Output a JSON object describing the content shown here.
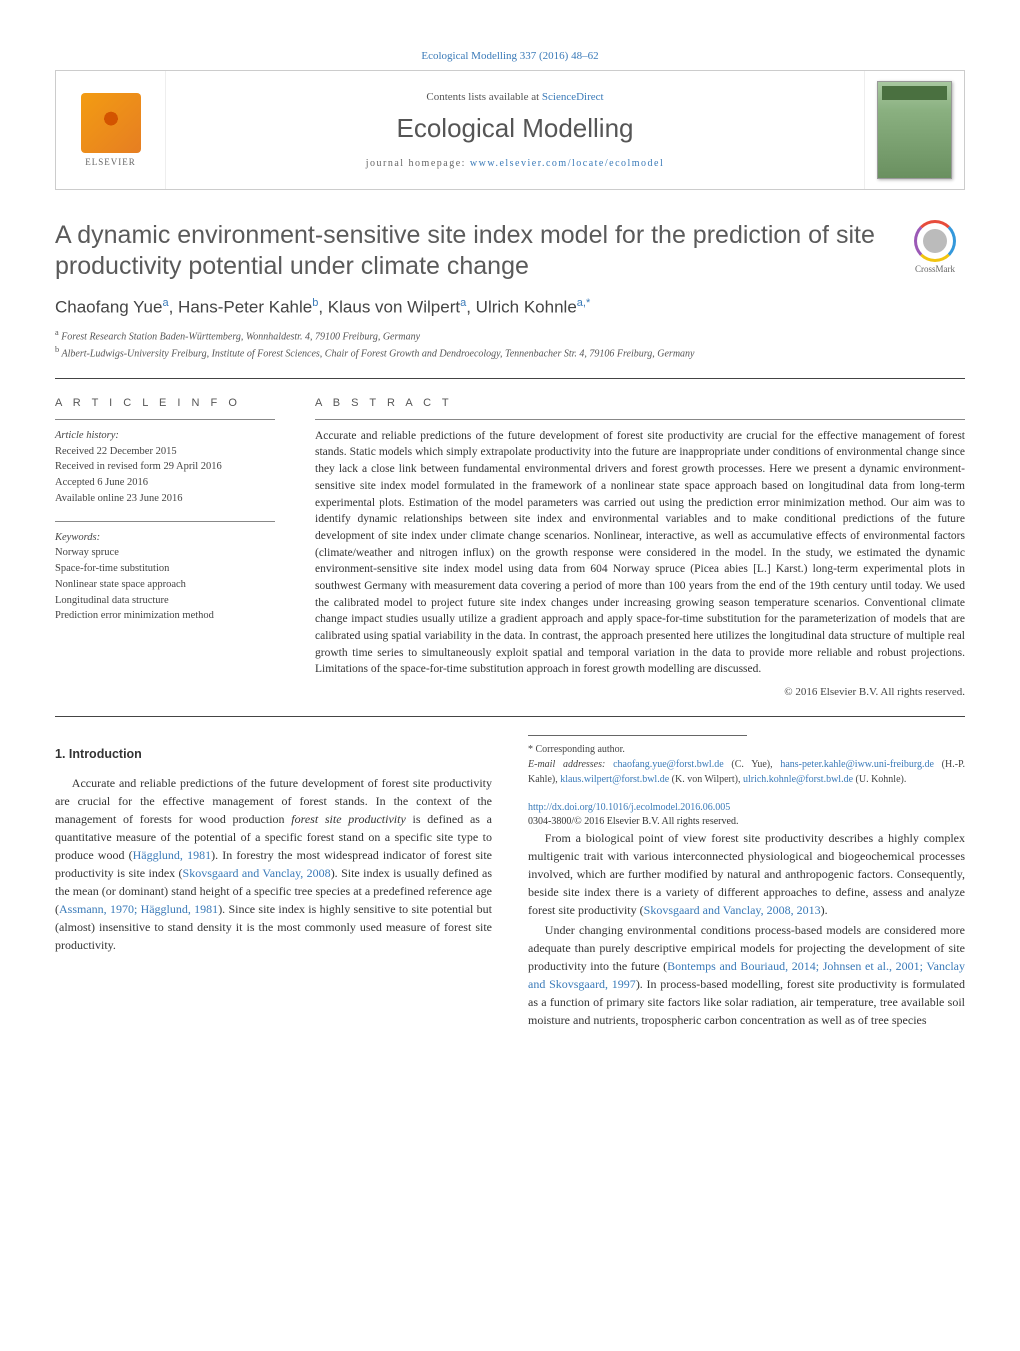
{
  "journal_ref": "Ecological Modelling 337 (2016) 48–62",
  "header": {
    "contents_prefix": "Contents lists available at ",
    "contents_link": "ScienceDirect",
    "journal_title": "Ecological Modelling",
    "homepage_prefix": "journal homepage: ",
    "homepage_link": "www.elsevier.com/locate/ecolmodel",
    "publisher_name": "ELSEVIER"
  },
  "crossmark_label": "CrossMark",
  "title": "A dynamic environment-sensitive site index model for the prediction of site productivity potential under climate change",
  "authors_html": "Chaofang Yue<sup>a</sup>, Hans-Peter Kahle<sup>b</sup>, Klaus von Wilpert<sup>a</sup>, Ulrich Kohnle<sup>a,*</sup>",
  "affiliations": [
    {
      "sup": "a",
      "text": "Forest Research Station Baden-Württemberg, Wonnhaldestr. 4, 79100 Freiburg, Germany"
    },
    {
      "sup": "b",
      "text": "Albert-Ludwigs-University Freiburg, Institute of Forest Sciences, Chair of Forest Growth and Dendroecology, Tennenbacher Str. 4, 79106 Freiburg, Germany"
    }
  ],
  "info": {
    "heading": "a r t i c l e   i n f o",
    "history_label": "Article history:",
    "history": [
      "Received 22 December 2015",
      "Received in revised form 29 April 2016",
      "Accepted 6 June 2016",
      "Available online 23 June 2016"
    ],
    "keywords_label": "Keywords:",
    "keywords": [
      "Norway spruce",
      "Space-for-time substitution",
      "Nonlinear state space approach",
      "Longitudinal data structure",
      "Prediction error minimization method"
    ]
  },
  "abstract": {
    "heading": "a b s t r a c t",
    "text": "Accurate and reliable predictions of the future development of forest site productivity are crucial for the effective management of forest stands. Static models which simply extrapolate productivity into the future are inappropriate under conditions of environmental change since they lack a close link between fundamental environmental drivers and forest growth processes. Here we present a dynamic environment-sensitive site index model formulated in the framework of a nonlinear state space approach based on longitudinal data from long-term experimental plots. Estimation of the model parameters was carried out using the prediction error minimization method. Our aim was to identify dynamic relationships between site index and environmental variables and to make conditional predictions of the future development of site index under climate change scenarios. Nonlinear, interactive, as well as accumulative effects of environmental factors (climate/weather and nitrogen influx) on the growth response were considered in the model. In the study, we estimated the dynamic environment-sensitive site index model using data from 604 Norway spruce (Picea abies [L.] Karst.) long-term experimental plots in southwest Germany with measurement data covering a period of more than 100 years from the end of the 19th century until today. We used the calibrated model to project future site index changes under increasing growing season temperature scenarios. Conventional climate change impact studies usually utilize a gradient approach and apply space-for-time substitution for the parameterization of models that are calibrated using spatial variability in the data. In contrast, the approach presented here utilizes the longitudinal data structure of multiple real growth time series to simultaneously exploit spatial and temporal variation in the data to provide more reliable and robust projections. Limitations of the space-for-time substitution approach in forest growth modelling are discussed.",
    "copyright": "© 2016 Elsevier B.V. All rights reserved."
  },
  "body": {
    "section_number": "1.",
    "section_title": "Introduction",
    "p1_a": "Accurate and reliable predictions of the future development of forest site productivity are crucial for the effective management of forest stands. In the context of the management of forests for wood production ",
    "p1_b_italic": "forest site productivity",
    "p1_c": " is defined as a quantitative measure of the potential of a specific forest stand on a specific site type to produce wood (",
    "p1_ref1": "Hägglund, 1981",
    "p1_d": "). In forestry the most widespread indicator of forest site productivity is site index (",
    "p1_ref2": "Skovsgaard and Vanclay, 2008",
    "p1_e": "). Site index is usually defined as the mean (or dominant) stand height of a specific tree species at a predefined reference age (",
    "p1_ref3": "Assmann, 1970; Hägglund, 1981",
    "p1_f": "). Since site index is highly sensitive to site potential but (almost) insensitive to stand density it is the most commonly used measure of forest site productivity.",
    "p2_a": "From a biological point of view forest site productivity describes a highly complex multigenic trait with various interconnected physiological and biogeochemical processes involved, which are further modified by natural and anthropogenic factors. Consequently, beside site index there is a variety of different approaches to define, assess and analyze forest site productivity (",
    "p2_ref1": "Skovsgaard and Vanclay, 2008, 2013",
    "p2_b": ").",
    "p3_a": "Under changing environmental conditions process-based models are considered more adequate than purely descriptive empirical models for projecting the development of site productivity into the future (",
    "p3_ref1": "Bontemps and Bouriaud, 2014; Johnsen et al., 2001; Vanclay and Skovsgaard, 1997",
    "p3_b": "). In process-based modelling, forest site productivity is formulated as a function of primary site factors like solar radiation, air temperature, tree available soil moisture and nutrients, tropospheric carbon concentration as well as of tree species"
  },
  "footnotes": {
    "corr_label": "* Corresponding author.",
    "email_label": "E-mail addresses:",
    "emails": [
      {
        "addr": "chaofang.yue@forst.bwl.de",
        "who": "(C. Yue)"
      },
      {
        "addr": "hans-peter.kahle@iww.uni-freiburg.de",
        "who": "(H.-P. Kahle)"
      },
      {
        "addr": "klaus.wilpert@forst.bwl.de",
        "who": "(K. von Wilpert)"
      },
      {
        "addr": "ulrich.kohnle@forst.bwl.de",
        "who": "(U. Kohnle)"
      }
    ]
  },
  "doi": {
    "link": "http://dx.doi.org/10.1016/j.ecolmodel.2016.06.005",
    "issn_line": "0304-3800/© 2016 Elsevier B.V. All rights reserved."
  },
  "colors": {
    "link": "#3a7ab8",
    "text": "#333333",
    "heading_gray": "#5a5a5a"
  }
}
